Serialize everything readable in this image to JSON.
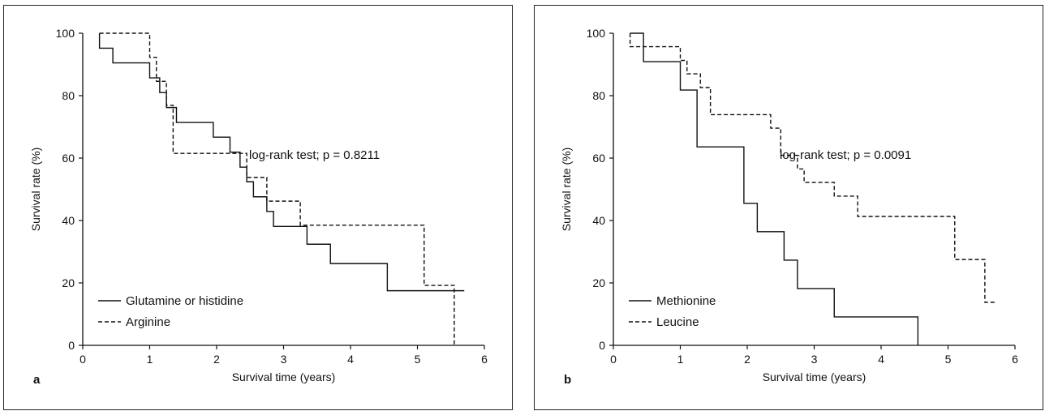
{
  "chart_data": [
    {
      "type": "line",
      "panel_label": "a",
      "xlabel": "Survival time (years)",
      "ylabel": "Survival rate (%)",
      "xlim": [
        0,
        6
      ],
      "ylim": [
        0,
        100
      ],
      "xticks": [
        "0",
        "1",
        "2",
        "3",
        "4",
        "5",
        "6"
      ],
      "yticks": [
        "0",
        "20",
        "40",
        "60",
        "80",
        "100"
      ],
      "grid": false,
      "legend_position": "bottom-left",
      "annotation": "log-rank test; p = 0.8211",
      "series": [
        {
          "name": "Glutamine or histidine",
          "style": "solid",
          "x": [
            0.25,
            0.45,
            1.0,
            1.15,
            1.25,
            1.4,
            1.95,
            2.2,
            2.35,
            2.45,
            2.55,
            2.75,
            2.85,
            3.35,
            3.7,
            4.55,
            5.7
          ],
          "y": [
            95.2,
            90.5,
            85.7,
            81.0,
            76.2,
            71.4,
            66.7,
            61.9,
            57.1,
            52.4,
            47.6,
            42.9,
            38.1,
            32.4,
            26.2,
            17.5,
            17.5
          ]
        },
        {
          "name": "Arginine",
          "style": "dashed",
          "x": [
            0.25,
            1.0,
            1.1,
            1.25,
            1.35,
            2.45,
            2.75,
            3.25,
            5.1,
            5.55
          ],
          "y": [
            100.0,
            92.3,
            84.6,
            76.9,
            61.5,
            53.8,
            46.2,
            38.5,
            19.2,
            0.0
          ]
        }
      ]
    },
    {
      "type": "line",
      "panel_label": "b",
      "xlabel": "Survival time (years)",
      "ylabel": "Survival rate (%)",
      "xlim": [
        0,
        6
      ],
      "ylim": [
        0,
        100
      ],
      "xticks": [
        "0",
        "1",
        "2",
        "3",
        "4",
        "5",
        "6"
      ],
      "yticks": [
        "0",
        "20",
        "40",
        "60",
        "80",
        "100"
      ],
      "grid": false,
      "legend_position": "bottom-left",
      "annotation": "log-rank test; p = 0.0091",
      "series": [
        {
          "name": "Methionine",
          "style": "solid",
          "x": [
            0.25,
            0.45,
            1.0,
            1.25,
            1.95,
            2.15,
            2.55,
            2.75,
            3.3,
            4.55
          ],
          "y": [
            100.0,
            90.9,
            81.8,
            63.6,
            45.5,
            36.4,
            27.3,
            18.2,
            9.1,
            0.0
          ]
        },
        {
          "name": "Leucine",
          "style": "dashed",
          "x": [
            0.25,
            1.0,
            1.1,
            1.3,
            1.45,
            2.35,
            2.5,
            2.75,
            2.85,
            3.3,
            3.65,
            5.1,
            5.55,
            5.7
          ],
          "y": [
            95.7,
            91.3,
            87.0,
            82.6,
            73.9,
            69.6,
            60.9,
            56.5,
            52.2,
            47.8,
            41.3,
            27.5,
            13.8,
            13.8
          ]
        }
      ]
    }
  ]
}
